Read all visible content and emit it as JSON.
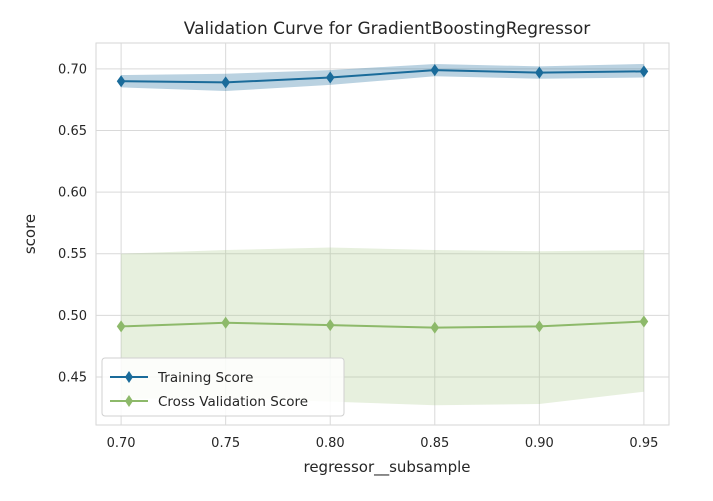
{
  "chart_data": {
    "type": "line",
    "title": "Validation Curve for GradientBoostingRegressor",
    "xlabel": "regressor__subsample",
    "ylabel": "score",
    "x": [
      0.7,
      0.75,
      0.8,
      0.85,
      0.9,
      0.95
    ],
    "xticks": [
      "0.70",
      "0.75",
      "0.80",
      "0.85",
      "0.90",
      "0.95"
    ],
    "yticks": [
      "0.45",
      "0.50",
      "0.55",
      "0.60",
      "0.65",
      "0.70"
    ],
    "ytick_values": [
      0.45,
      0.5,
      0.55,
      0.6,
      0.65,
      0.7
    ],
    "xlim": [
      0.688,
      0.962
    ],
    "ylim": [
      0.411,
      0.721
    ],
    "grid": true,
    "legend_position": "lower-left",
    "series": [
      {
        "name": "Training Score",
        "color": "#1a6b9a",
        "band_color": "#1a6b9a",
        "marker": "diamond",
        "values": [
          0.69,
          0.689,
          0.693,
          0.699,
          0.697,
          0.698
        ],
        "upper": [
          0.695,
          0.696,
          0.699,
          0.704,
          0.702,
          0.704
        ],
        "lower": [
          0.685,
          0.682,
          0.687,
          0.694,
          0.692,
          0.693
        ]
      },
      {
        "name": "Cross Validation Score",
        "color": "#8db96a",
        "band_color": "#a9c98a",
        "marker": "diamond",
        "values": [
          0.491,
          0.494,
          0.492,
          0.49,
          0.491,
          0.495
        ],
        "upper": [
          0.55,
          0.553,
          0.555,
          0.553,
          0.552,
          0.553
        ],
        "lower": [
          0.432,
          0.433,
          0.43,
          0.427,
          0.428,
          0.438
        ]
      }
    ]
  }
}
